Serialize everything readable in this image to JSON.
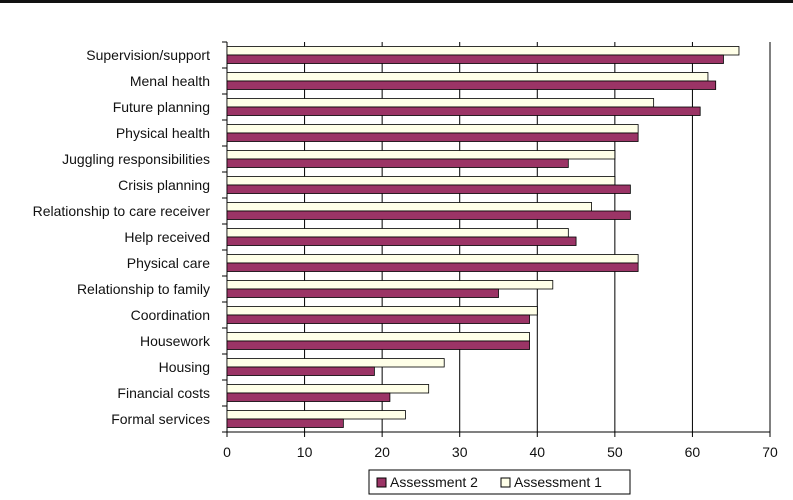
{
  "chart_data": {
    "type": "bar",
    "orientation": "horizontal",
    "categories": [
      "Supervision/support",
      "Menal health",
      "Future planning",
      "Physical health",
      "Juggling responsibilities",
      "Crisis planning",
      "Relationship to care receiver",
      "Help received",
      "Physical care",
      "Relationship to family",
      "Coordination",
      "Housework",
      "Housing",
      "Financial costs",
      "Formal services"
    ],
    "series": [
      {
        "name": "Assessment 1",
        "color": "#ffffe8",
        "values": [
          66,
          62,
          55,
          53,
          50,
          50,
          47,
          44,
          53,
          42,
          40,
          39,
          28,
          26,
          23
        ]
      },
      {
        "name": "Assessment 2",
        "color": "#9b3466",
        "values": [
          64,
          63,
          61,
          53,
          44,
          52,
          52,
          45,
          53,
          35,
          39,
          39,
          19,
          21,
          15
        ]
      }
    ],
    "legend_order": [
      "Assessment 2",
      "Assessment 1"
    ],
    "xlim": [
      0,
      70
    ],
    "xticks": [
      0,
      10,
      20,
      30,
      40,
      50,
      60,
      70
    ],
    "grid": "vertical",
    "legend_position": "bottom-center",
    "title": "",
    "xlabel": "",
    "ylabel": ""
  }
}
